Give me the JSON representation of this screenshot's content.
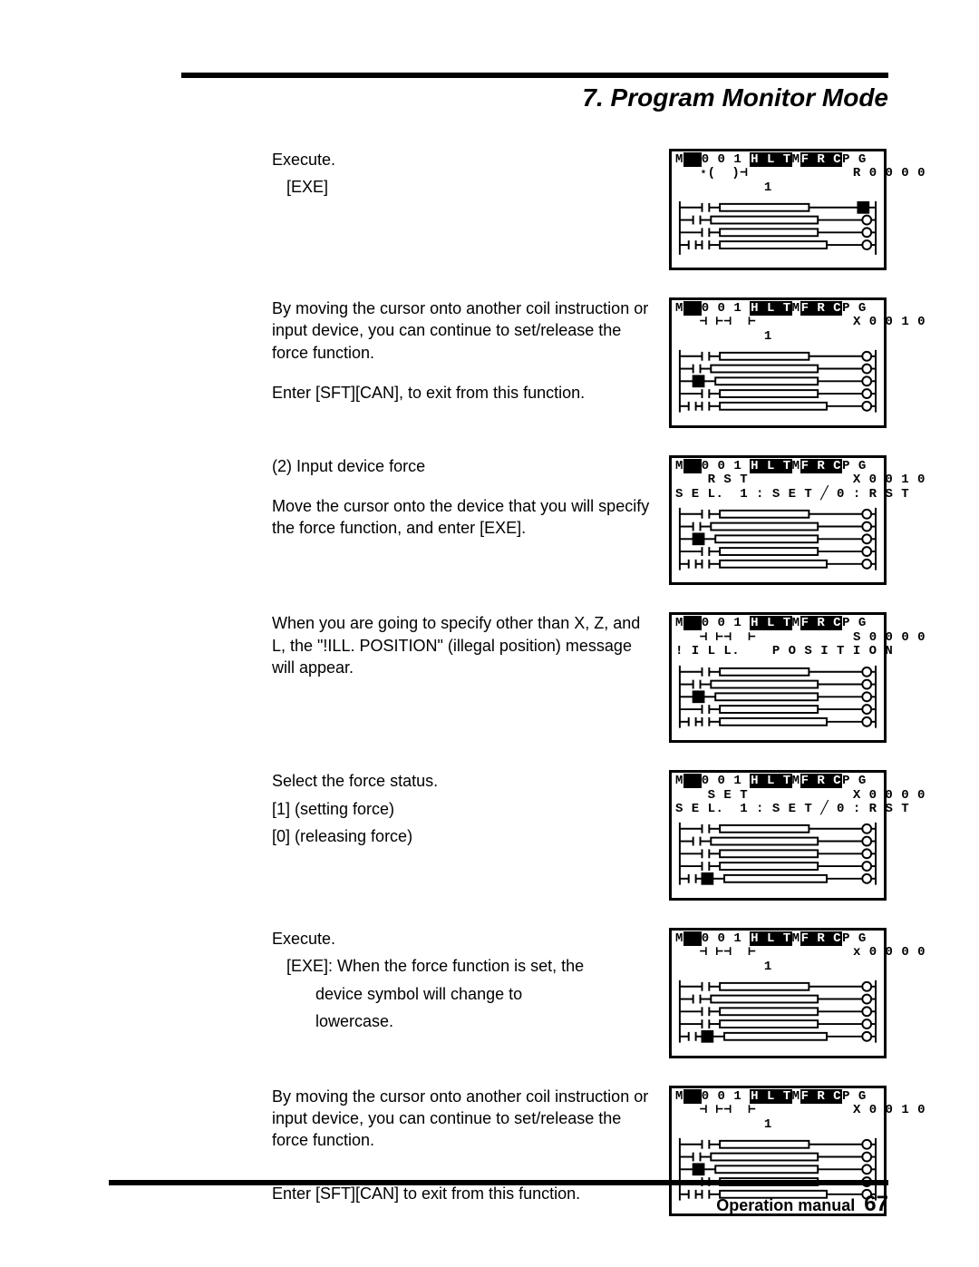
{
  "header": {
    "title": "7. Program Monitor Mode"
  },
  "rows": [
    {
      "text": [
        {
          "t": "Execute.",
          "cls": ""
        },
        {
          "t": "[EXE]",
          "cls": "indent1"
        }
      ],
      "lcd": {
        "lines": [
          {
            "segs": [
              {
                "t": "M"
              },
              {
                "t": "  ",
                "inv": true
              },
              {
                "t": "0 0 1 "
              },
              {
                "t": "H L T",
                "inv": true
              },
              {
                "t": "M"
              },
              {
                "t": "F R C",
                "inv": true
              },
              {
                "t": "P G"
              }
            ]
          },
          {
            "segs": [
              {
                "t": "   ⋆(  )⊣             R 0 0 0 0"
              }
            ]
          },
          {
            "segs": [
              {
                "t": "           1"
              }
            ]
          }
        ],
        "ladder": "A"
      }
    },
    {
      "text": [
        {
          "t": "By moving the cursor onto another coil instruction or input device, you can continue to set/release the force function.",
          "cls": ""
        },
        {
          "t": "",
          "cls": "spacer"
        },
        {
          "t": "Enter [SFT][CAN], to exit from this function.",
          "cls": ""
        }
      ],
      "lcd": {
        "lines": [
          {
            "segs": [
              {
                "t": "M"
              },
              {
                "t": "  ",
                "inv": true
              },
              {
                "t": "0 0 1 "
              },
              {
                "t": "H L T",
                "inv": true
              },
              {
                "t": "M"
              },
              {
                "t": "F R C",
                "inv": true
              },
              {
                "t": "P G"
              }
            ]
          },
          {
            "segs": [
              {
                "t": "   ⊣ ⊢⊣  ⊢            X 0 0 1 0"
              }
            ]
          },
          {
            "segs": [
              {
                "t": "           1"
              }
            ]
          }
        ],
        "ladder": "B"
      }
    },
    {
      "text": [
        {
          "t": "(2) Input device force",
          "cls": ""
        },
        {
          "t": "",
          "cls": "spacer"
        },
        {
          "t": "Move the cursor onto the device that you will specify the force function, and enter [EXE].",
          "cls": ""
        }
      ],
      "lcd": {
        "lines": [
          {
            "segs": [
              {
                "t": "M"
              },
              {
                "t": "  ",
                "inv": true
              },
              {
                "t": "0 0 1 "
              },
              {
                "t": "H L T",
                "inv": true
              },
              {
                "t": "M"
              },
              {
                "t": "F R C",
                "inv": true
              },
              {
                "t": "P G"
              }
            ]
          },
          {
            "segs": [
              {
                "t": "    R S T             X 0 0 1 0"
              }
            ]
          },
          {
            "segs": [
              {
                "t": "S E L.  1 : S E T ╱ 0 : R S T"
              }
            ]
          }
        ],
        "ladder": "B"
      }
    },
    {
      "text": [
        {
          "t": "When you are going to specify other than X, Z, and L, the \"!ILL. POSITION\" (illegal position) message will appear.",
          "cls": ""
        }
      ],
      "lcd": {
        "lines": [
          {
            "segs": [
              {
                "t": "M"
              },
              {
                "t": "  ",
                "inv": true
              },
              {
                "t": "0 0 1 "
              },
              {
                "t": "H L T",
                "inv": true
              },
              {
                "t": "M"
              },
              {
                "t": "F R C",
                "inv": true
              },
              {
                "t": "P G"
              }
            ]
          },
          {
            "segs": [
              {
                "t": "   ⊣ ⊢⊣  ⊢            S 0 0 0 0"
              }
            ]
          },
          {
            "segs": [
              {
                "t": "! I L L.    P O S I T I O N"
              }
            ]
          }
        ],
        "ladder": "B"
      }
    },
    {
      "text": [
        {
          "t": "Select the force status.",
          "cls": ""
        },
        {
          "t": "[1]  (setting force)",
          "cls": ""
        },
        {
          "t": "[0]  (releasing force)",
          "cls": ""
        }
      ],
      "lcd": {
        "lines": [
          {
            "segs": [
              {
                "t": "M"
              },
              {
                "t": "  ",
                "inv": true
              },
              {
                "t": "0 0 1 "
              },
              {
                "t": "H L T",
                "inv": true
              },
              {
                "t": "M"
              },
              {
                "t": "F R C",
                "inv": true
              },
              {
                "t": "P G"
              }
            ]
          },
          {
            "segs": [
              {
                "t": "    S E T             X 0 0 0 0"
              }
            ]
          },
          {
            "segs": [
              {
                "t": "S E L.  1 : S E T ╱ 0 : R S T"
              }
            ]
          }
        ],
        "ladder": "C"
      }
    },
    {
      "text": [
        {
          "t": "Execute.",
          "cls": ""
        },
        {
          "t": "[EXE]:  When the force function is set, the",
          "cls": "indent1"
        },
        {
          "t": "device symbol will change to",
          "cls": "indent2"
        },
        {
          "t": "lowercase.",
          "cls": "indent2"
        }
      ],
      "lcd": {
        "lines": [
          {
            "segs": [
              {
                "t": "M"
              },
              {
                "t": "  ",
                "inv": true
              },
              {
                "t": "0 0 1 "
              },
              {
                "t": "H L T",
                "inv": true
              },
              {
                "t": "M"
              },
              {
                "t": "F R C",
                "inv": true
              },
              {
                "t": "P G"
              }
            ]
          },
          {
            "segs": [
              {
                "t": "   ⊣ ⊢⊣  ⊢            x 0 0 0 0"
              }
            ]
          },
          {
            "segs": [
              {
                "t": "           1"
              }
            ]
          }
        ],
        "ladder": "C"
      }
    },
    {
      "text": [
        {
          "t": "By moving the cursor onto another coil instruction or input device, you can continue to set/release the force function.",
          "cls": ""
        },
        {
          "t": "",
          "cls": "spacer"
        },
        {
          "t": "",
          "cls": "spacer"
        },
        {
          "t": "Enter [SFT][CAN] to exit from this function.",
          "cls": ""
        }
      ],
      "lcd": {
        "lines": [
          {
            "segs": [
              {
                "t": "M"
              },
              {
                "t": "  ",
                "inv": true
              },
              {
                "t": "0 0 1 "
              },
              {
                "t": "H L T",
                "inv": true
              },
              {
                "t": "M"
              },
              {
                "t": "F R C",
                "inv": true
              },
              {
                "t": "P G"
              }
            ]
          },
          {
            "segs": [
              {
                "t": "   ⊣ ⊢⊣  ⊢            X 0 0 1 0"
              }
            ]
          },
          {
            "segs": [
              {
                "t": "           1"
              }
            ]
          }
        ],
        "ladder": "B"
      }
    }
  ],
  "footer": {
    "label": "Operation manual",
    "page": "67"
  },
  "ladders": {
    "A": "<svg viewBox='0 0 230 70' xmlns='http://www.w3.org/2000/svg' stroke='#000' stroke-width='2' fill='none'><line x1='5' y1='5' x2='5' y2='65'/><line x1='225' y1='5' x2='225' y2='65'/><g><line x1='5' y1='12' x2='30' y2='12'/><line x1='30' y1='7' x2='30' y2='17'/><line x1='38' y1='7' x2='38' y2='17'/><line x1='38' y1='12' x2='50' y2='12'/><rect x='50' y='8' width='100' height='8'/><line x1='150' y1='12' x2='205' y2='12'/><rect x='205' y='6' width='12' height='12' fill='#000'/><line x1='217' y1='12' x2='225' y2='12'/></g><g><line x1='5' y1='26' x2='20' y2='26'/><line x1='20' y1='21' x2='20' y2='31'/><line x1='28' y1='21' x2='28' y2='31'/><line x1='28' y1='26' x2='40' y2='26'/><rect x='40' y='22' width='120' height='8'/><line x1='160' y1='26' x2='210' y2='26'/><circle cx='215' cy='26' r='5'/><line x1='220' y1='26' x2='225' y2='26'/></g><g><line x1='5' y1='40' x2='30' y2='40'/><line x1='30' y1='35' x2='30' y2='45'/><line x1='38' y1='35' x2='38' y2='45'/><line x1='38' y1='40' x2='50' y2='40'/><rect x='50' y='36' width='110' height='8'/><line x1='160' y1='40' x2='210' y2='40'/><circle cx='215' cy='40' r='5'/><line x1='220' y1='40' x2='225' y2='40'/></g><g><line x1='5' y1='54' x2='15' y2='54'/><line x1='15' y1='49' x2='15' y2='59'/><line x1='23' y1='49' x2='23' y2='59'/><line x1='23' y1='54' x2='30' y2='54'/><line x1='30' y1='49' x2='30' y2='59'/><line x1='38' y1='49' x2='38' y2='59'/><line x1='38' y1='54' x2='50' y2='54'/><rect x='50' y='50' width='120' height='8'/><line x1='170' y1='54' x2='210' y2='54'/><circle cx='215' cy='54' r='5'/><line x1='220' y1='54' x2='225' y2='54'/></g></svg>",
    "B": "<svg viewBox='0 0 230 80' xmlns='http://www.w3.org/2000/svg' stroke='#000' stroke-width='2' fill='none'><line x1='5' y1='5' x2='5' y2='75'/><line x1='225' y1='5' x2='225' y2='75'/><g><line x1='5' y1='12' x2='30' y2='12'/><line x1='30' y1='7' x2='30' y2='17'/><line x1='38' y1='7' x2='38' y2='17'/><line x1='38' y1='12' x2='50' y2='12'/><rect x='50' y='8' width='100' height='8'/><line x1='150' y1='12' x2='210' y2='12'/><circle cx='215' cy='12' r='5'/><line x1='220' y1='12' x2='225' y2='12'/></g><g><line x1='5' y1='26' x2='20' y2='26'/><line x1='20' y1='21' x2='20' y2='31'/><line x1='28' y1='21' x2='28' y2='31'/><line x1='28' y1='26' x2='40' y2='26'/><rect x='40' y='22' width='120' height='8'/><line x1='160' y1='26' x2='210' y2='26'/><circle cx='215' cy='26' r='5'/><line x1='220' y1='26' x2='225' y2='26'/></g><g><line x1='5' y1='40' x2='20' y2='40'/><rect x='20' y='34' width='12' height='12' fill='#000'/><line x1='32' y1='40' x2='45' y2='40'/><rect x='45' y='36' width='115' height='8'/><line x1='160' y1='40' x2='210' y2='40'/><circle cx='215' cy='40' r='5'/><line x1='220' y1='40' x2='225' y2='40'/></g><g><line x1='5' y1='54' x2='30' y2='54'/><line x1='30' y1='49' x2='30' y2='59'/><line x1='38' y1='49' x2='38' y2='59'/><line x1='38' y1='54' x2='50' y2='54'/><rect x='50' y='50' width='110' height='8'/><line x1='160' y1='54' x2='210' y2='54'/><circle cx='215' cy='54' r='5'/><line x1='220' y1='54' x2='225' y2='54'/></g><g><line x1='5' y1='68' x2='15' y2='68'/><line x1='15' y1='63' x2='15' y2='73'/><line x1='23' y1='63' x2='23' y2='73'/><line x1='23' y1='68' x2='30' y2='68'/><line x1='30' y1='63' x2='30' y2='73'/><line x1='38' y1='63' x2='38' y2='73'/><line x1='38' y1='68' x2='50' y2='68'/><rect x='50' y='64' width='120' height='8'/><line x1='170' y1='68' x2='210' y2='68'/><circle cx='215' cy='68' r='5'/><line x1='220' y1='68' x2='225' y2='68'/></g></svg>",
    "C": "<svg viewBox='0 0 230 80' xmlns='http://www.w3.org/2000/svg' stroke='#000' stroke-width='2' fill='none'><line x1='5' y1='5' x2='5' y2='75'/><line x1='225' y1='5' x2='225' y2='75'/><g><line x1='5' y1='12' x2='30' y2='12'/><line x1='30' y1='7' x2='30' y2='17'/><line x1='38' y1='7' x2='38' y2='17'/><line x1='38' y1='12' x2='50' y2='12'/><rect x='50' y='8' width='100' height='8'/><line x1='150' y1='12' x2='210' y2='12'/><circle cx='215' cy='12' r='5'/><line x1='220' y1='12' x2='225' y2='12'/></g><g><line x1='5' y1='26' x2='20' y2='26'/><line x1='20' y1='21' x2='20' y2='31'/><line x1='28' y1='21' x2='28' y2='31'/><line x1='28' y1='26' x2='40' y2='26'/><rect x='40' y='22' width='120' height='8'/><line x1='160' y1='26' x2='210' y2='26'/><circle cx='215' cy='26' r='5'/><line x1='220' y1='26' x2='225' y2='26'/></g><g><line x1='5' y1='40' x2='30' y2='40'/><line x1='30' y1='35' x2='30' y2='45'/><line x1='38' y1='35' x2='38' y2='45'/><line x1='38' y1='40' x2='50' y2='40'/><rect x='50' y='36' width='110' height='8'/><line x1='160' y1='40' x2='210' y2='40'/><circle cx='215' cy='40' r='5'/><line x1='220' y1='40' x2='225' y2='40'/></g><g><line x1='5' y1='54' x2='30' y2='54'/><line x1='30' y1='49' x2='30' y2='59'/><line x1='38' y1='49' x2='38' y2='59'/><line x1='38' y1='54' x2='50' y2='54'/><rect x='50' y='50' width='110' height='8'/><line x1='160' y1='54' x2='210' y2='54'/><circle cx='215' cy='54' r='5'/><line x1='220' y1='54' x2='225' y2='54'/></g><g><line x1='5' y1='68' x2='15' y2='68'/><line x1='15' y1='63' x2='15' y2='73'/><line x1='23' y1='63' x2='23' y2='73'/><line x1='23' y1='68' x2='30' y2='68'/><rect x='30' y='62' width='12' height='12' fill='#000'/><line x1='42' y1='68' x2='55' y2='68'/><rect x='55' y='64' width='115' height='8'/><line x1='170' y1='68' x2='210' y2='68'/><circle cx='215' cy='68' r='5'/><line x1='220' y1='68' x2='225' y2='68'/></g></svg>"
  }
}
